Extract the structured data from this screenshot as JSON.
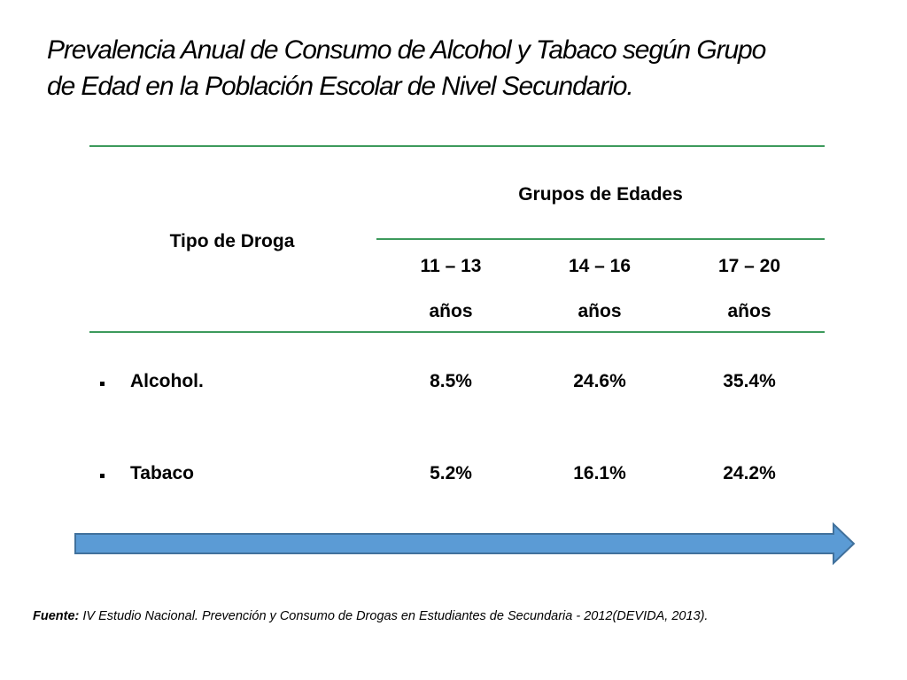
{
  "title": {
    "line1": "Prevalencia Anual de Consumo de Alcohol y Tabaco según Grupo",
    "line2": "de Edad en la Población Escolar de Nivel Secundario."
  },
  "table": {
    "row_header": "Tipo de Droga",
    "group_header": "Grupos de Edades",
    "columns": [
      {
        "range": "11 – 13",
        "unit": "años"
      },
      {
        "range": "14 – 16",
        "unit": "años"
      },
      {
        "range": "17 – 20",
        "unit": "años"
      }
    ],
    "rows": [
      {
        "label": "Alcohol.",
        "values": [
          "8.5%",
          "24.6%",
          "35.4%"
        ]
      },
      {
        "label": "Tabaco",
        "values": [
          "5.2%",
          "16.1%",
          "24.2%"
        ]
      }
    ]
  },
  "source": {
    "label": "Fuente:",
    "text": " IV Estudio Nacional. Prevención y Consumo de Drogas en Estudiantes de Secundaria - 2012(DEVIDA, 2013)."
  },
  "colors": {
    "rule": "#3d9a5c",
    "arrow_fill": "#5b9bd5",
    "arrow_stroke": "#41719c"
  }
}
